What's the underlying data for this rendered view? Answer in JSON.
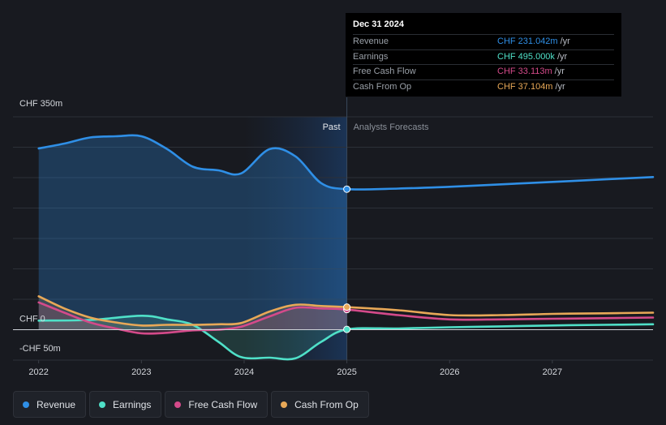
{
  "chart_data": {
    "type": "line",
    "title": "",
    "xlabel": "",
    "ylabel": "",
    "y_tick_labels": [
      "CHF 350m",
      "CHF 0",
      "-CHF 50m"
    ],
    "x_tick_labels": [
      "2022",
      "2023",
      "2024",
      "2025",
      "2026",
      "2027"
    ],
    "x_ticks": [
      2022,
      2023,
      2024,
      2025,
      2026,
      2027
    ],
    "xlim": [
      2021.75,
      2027.98
    ],
    "ylim": [
      -50,
      350
    ],
    "divider_x": 2025.0,
    "past_label": "Past",
    "forecast_label": "Analysts Forecasts",
    "series": [
      {
        "name": "Revenue",
        "color": "#2f8fe6",
        "x": [
          2022.0,
          2022.25,
          2022.5,
          2022.75,
          2023.0,
          2023.25,
          2023.5,
          2023.75,
          2023.97,
          2024.25,
          2024.5,
          2024.75,
          2025.0,
          2025.5,
          2026.0,
          2026.5,
          2027.0,
          2027.5,
          2027.98
        ],
        "values": [
          298,
          306,
          316,
          318,
          318,
          297,
          268,
          262,
          257,
          297,
          285,
          241,
          231.042,
          232,
          235,
          239,
          243,
          247,
          251
        ]
      },
      {
        "name": "Earnings",
        "color": "#4fe0c8",
        "x": [
          2022.0,
          2022.5,
          2023.0,
          2023.25,
          2023.5,
          2023.75,
          2023.97,
          2024.25,
          2024.5,
          2024.75,
          2025.0,
          2025.5,
          2026.0,
          2026.5,
          2027.0,
          2027.5,
          2027.98
        ],
        "values": [
          15,
          16,
          23,
          17,
          8,
          -20,
          -45,
          -46,
          -47,
          -20,
          0.495,
          2,
          4,
          5.5,
          7,
          8,
          9
        ]
      },
      {
        "name": "Free Cash Flow",
        "color": "#d44a8a",
        "x": [
          2022.0,
          2022.25,
          2022.5,
          2022.75,
          2023.0,
          2023.25,
          2023.5,
          2023.75,
          2023.97,
          2024.25,
          2024.5,
          2024.75,
          2025.0,
          2025.5,
          2026.0,
          2026.5,
          2027.0,
          2027.5,
          2027.98
        ],
        "values": [
          45,
          28,
          12,
          2,
          -6,
          -5,
          -1,
          0,
          5,
          22,
          36,
          35,
          33.113,
          24,
          17,
          17,
          18,
          19,
          20
        ]
      },
      {
        "name": "Cash From Op",
        "color": "#e8a857",
        "x": [
          2022.0,
          2022.25,
          2022.5,
          2022.75,
          2023.0,
          2023.25,
          2023.5,
          2023.75,
          2023.97,
          2024.25,
          2024.5,
          2024.75,
          2025.0,
          2025.5,
          2026.0,
          2026.5,
          2027.0,
          2027.5,
          2027.98
        ],
        "values": [
          55,
          35,
          20,
          12,
          7,
          8,
          8,
          9,
          11,
          30,
          41,
          39,
          37.104,
          32,
          24,
          24,
          26,
          27,
          28
        ]
      }
    ]
  },
  "tooltip": {
    "date": "Dec 31 2024",
    "rows": [
      {
        "label": "Revenue",
        "value": "CHF 231.042m",
        "unit": "/yr",
        "color": "#2f8fe6"
      },
      {
        "label": "Earnings",
        "value": "CHF 495.000k",
        "unit": "/yr",
        "color": "#4fe0c8"
      },
      {
        "label": "Free Cash Flow",
        "value": "CHF 33.113m",
        "unit": "/yr",
        "color": "#d44a8a"
      },
      {
        "label": "Cash From Op",
        "value": "CHF 37.104m",
        "unit": "/yr",
        "color": "#e8a857"
      }
    ]
  },
  "legend": [
    {
      "label": "Revenue",
      "color": "#2f8fe6"
    },
    {
      "label": "Earnings",
      "color": "#4fe0c8"
    },
    {
      "label": "Free Cash Flow",
      "color": "#d44a8a"
    },
    {
      "label": "Cash From Op",
      "color": "#e8a857"
    }
  ]
}
